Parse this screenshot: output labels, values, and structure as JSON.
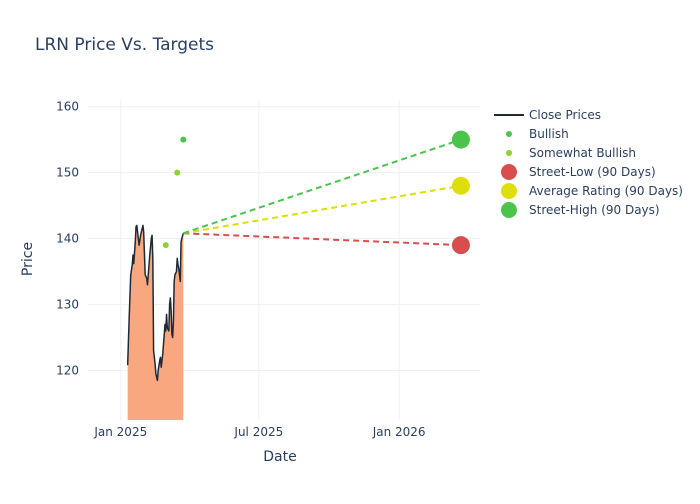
{
  "chart_data": {
    "type": "line",
    "title": "LRN Price Vs. Targets",
    "xlabel": "Date",
    "ylabel": "Price",
    "xlim": [
      "2024-11-19",
      "2026-04-17"
    ],
    "ylim": [
      112.5,
      161
    ],
    "x_ticks": [
      {
        "date": "2025-01-01",
        "label": "Jan 2025"
      },
      {
        "date": "2025-07-01",
        "label": "Jul 2025"
      },
      {
        "date": "2026-01-01",
        "label": "Jan 2026"
      }
    ],
    "y_ticks": [
      120,
      130,
      140,
      150,
      160
    ],
    "grid": true,
    "legend_position": "right",
    "series": [
      {
        "name": "Close Prices",
        "kind": "line-with-area",
        "color": "#1f2a36",
        "fill_color": "#f9a77e",
        "points": [
          [
            "2025-01-10",
            120.8
          ],
          [
            "2025-01-12",
            128.0
          ],
          [
            "2025-01-14",
            134.5
          ],
          [
            "2025-01-16",
            136.0
          ],
          [
            "2025-01-17",
            137.5
          ],
          [
            "2025-01-18",
            136.2
          ],
          [
            "2025-01-20",
            139.5
          ],
          [
            "2025-01-21",
            141.8
          ],
          [
            "2025-01-22",
            142.0
          ],
          [
            "2025-01-24",
            140.0
          ],
          [
            "2025-01-25",
            139.0
          ],
          [
            "2025-01-27",
            140.5
          ],
          [
            "2025-01-29",
            141.5
          ],
          [
            "2025-01-30",
            142.0
          ],
          [
            "2025-01-31",
            141.0
          ],
          [
            "2025-02-02",
            134.5
          ],
          [
            "2025-02-04",
            134.0
          ],
          [
            "2025-02-05",
            133.0
          ],
          [
            "2025-02-06",
            134.5
          ],
          [
            "2025-02-08",
            137.5
          ],
          [
            "2025-02-10",
            140.0
          ],
          [
            "2025-02-11",
            140.5
          ],
          [
            "2025-02-12",
            137.0
          ],
          [
            "2025-02-13",
            123.0
          ],
          [
            "2025-02-15",
            121.0
          ],
          [
            "2025-02-16",
            119.5
          ],
          [
            "2025-02-18",
            118.5
          ],
          [
            "2025-02-19",
            120.0
          ],
          [
            "2025-02-21",
            121.5
          ],
          [
            "2025-02-22",
            122.0
          ],
          [
            "2025-02-23",
            120.5
          ],
          [
            "2025-02-25",
            122.5
          ],
          [
            "2025-02-27",
            125.5
          ],
          [
            "2025-02-28",
            127.0
          ],
          [
            "2025-03-01",
            126.0
          ],
          [
            "2025-03-02",
            128.5
          ],
          [
            "2025-03-03",
            126.5
          ],
          [
            "2025-03-05",
            126.0
          ],
          [
            "2025-03-06",
            130.0
          ],
          [
            "2025-03-07",
            131.0
          ],
          [
            "2025-03-08",
            129.0
          ],
          [
            "2025-03-09",
            125.5
          ],
          [
            "2025-03-10",
            125.0
          ],
          [
            "2025-03-11",
            127.5
          ],
          [
            "2025-03-12",
            133.5
          ],
          [
            "2025-03-13",
            134.5
          ],
          [
            "2025-03-15",
            135.0
          ],
          [
            "2025-03-16",
            137.0
          ],
          [
            "2025-03-17",
            136.0
          ],
          [
            "2025-03-18",
            135.5
          ],
          [
            "2025-03-19",
            134.5
          ],
          [
            "2025-03-20",
            133.5
          ],
          [
            "2025-03-21",
            139.5
          ],
          [
            "2025-03-22",
            140.0
          ],
          [
            "2025-03-24",
            140.8
          ]
        ]
      },
      {
        "name": "Bullish",
        "kind": "markers",
        "color": "#4cc44c",
        "points": [
          [
            "2025-03-24",
            155.0
          ]
        ]
      },
      {
        "name": "Somewhat Bullish",
        "kind": "markers",
        "color": "#8fd131",
        "points": [
          [
            "2025-03-01",
            139.0
          ],
          [
            "2025-03-16",
            150.0
          ]
        ]
      },
      {
        "name": "Street-Low (90 Days)",
        "kind": "target",
        "color": "#d64e4e",
        "from": [
          "2025-03-24",
          140.8
        ],
        "to": [
          "2026-03-23",
          139.0
        ]
      },
      {
        "name": "Average Rating (90 Days)",
        "kind": "target",
        "color": "#dede0a",
        "from": [
          "2025-03-24",
          140.8
        ],
        "to": [
          "2026-03-23",
          148.0
        ]
      },
      {
        "name": "Street-High (90 Days)",
        "kind": "target",
        "color": "#4cc44c",
        "from": [
          "2025-03-24",
          140.8
        ],
        "to": [
          "2026-03-23",
          155.0
        ]
      }
    ]
  }
}
